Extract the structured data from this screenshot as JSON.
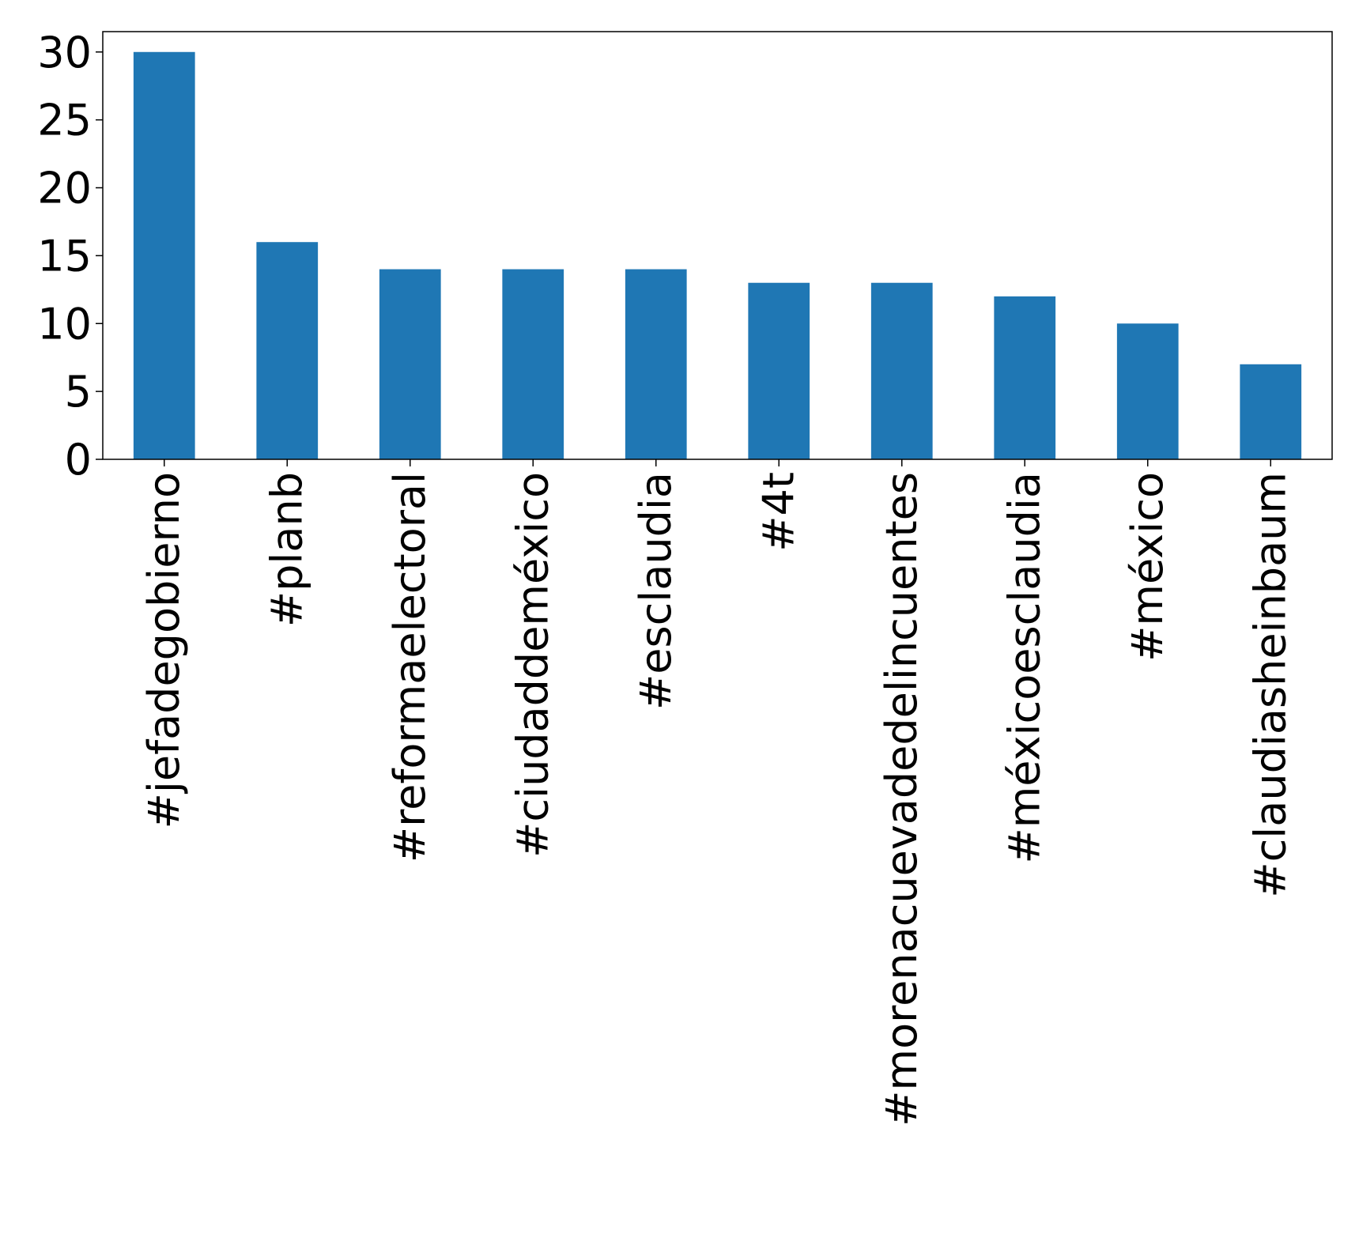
{
  "chart_data": {
    "type": "bar",
    "title": "",
    "xlabel": "",
    "ylabel": "",
    "categories": [
      "#jefadegobierno",
      "#planb",
      "#reformaelectoral",
      "#ciudaddeméxico",
      "#esclaudia",
      "#4t",
      "#morenacuevadedelincuentes",
      "#méxicoesclaudia",
      "#méxico",
      "#claudiasheinbaum"
    ],
    "values": [
      30,
      16,
      14,
      14,
      14,
      13,
      13,
      12,
      10,
      7
    ],
    "ylim": [
      0,
      31.5
    ],
    "yticks": [
      0,
      5,
      10,
      15,
      20,
      25,
      30
    ],
    "grid": false,
    "legend": "none",
    "bar_color": "#1f77b4"
  }
}
